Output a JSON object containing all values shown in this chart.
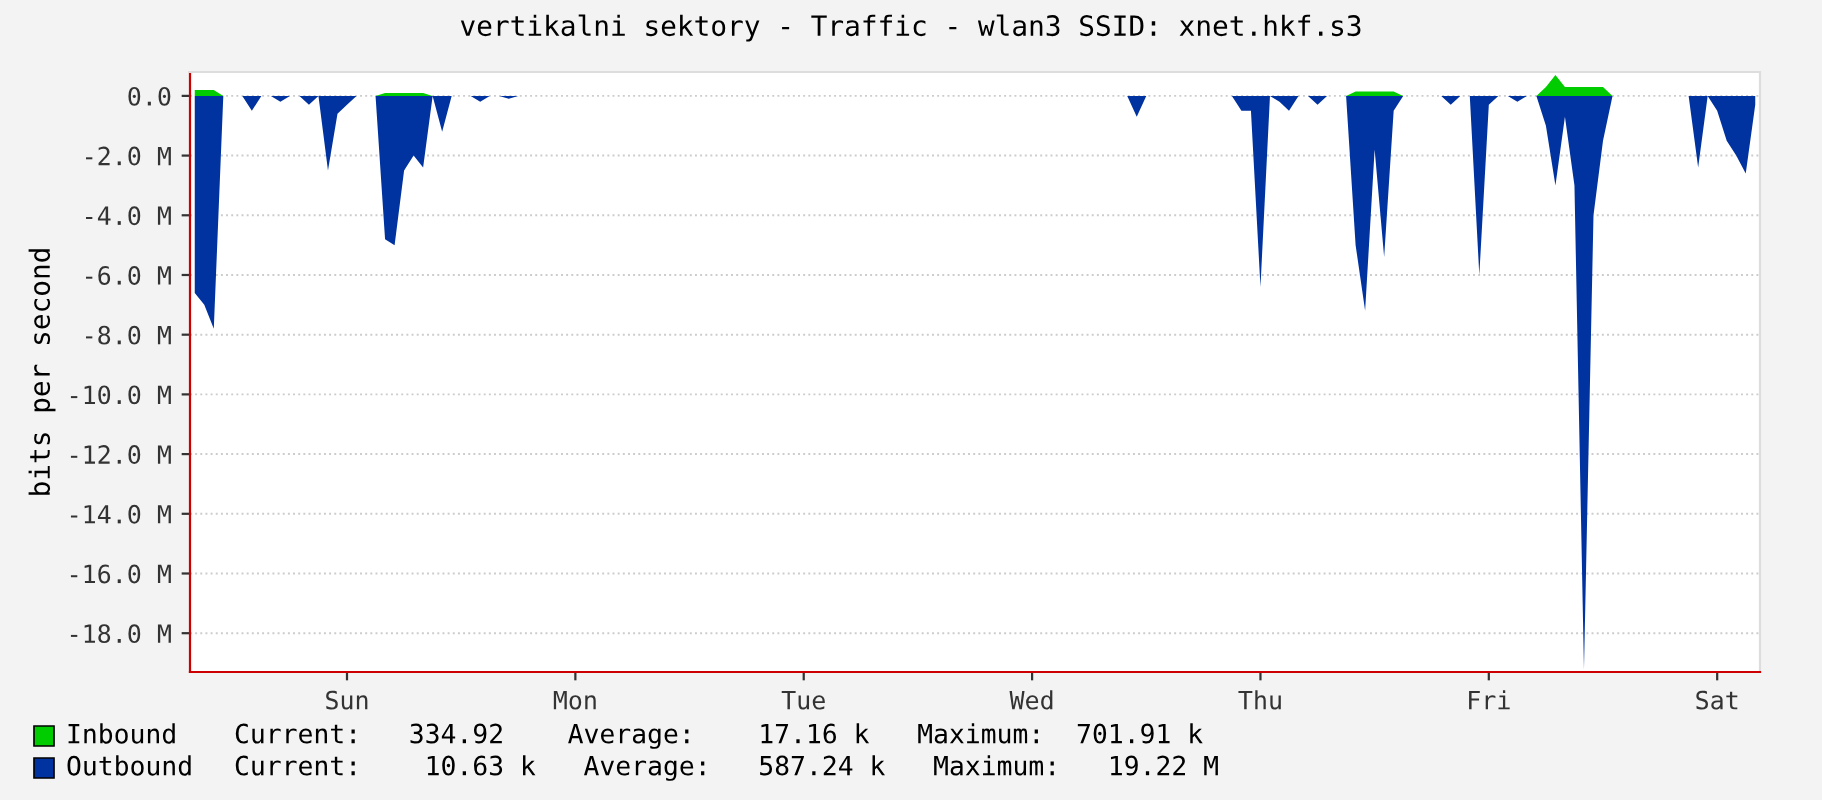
{
  "chart_data": {
    "type": "area",
    "title": "vertikalni sektory - Traffic - wlan3 SSID: xnet.hkf.s3",
    "ylabel": "bits per second",
    "categories": [
      null,
      null,
      null,
      null,
      null,
      null,
      null,
      null,
      null,
      null,
      null,
      null,
      null,
      null,
      null,
      null,
      "Sun",
      null,
      null,
      null,
      null,
      null,
      null,
      null,
      null,
      null,
      null,
      null,
      null,
      null,
      null,
      null,
      null,
      null,
      null,
      null,
      null,
      null,
      null,
      null,
      "Mon",
      null,
      null,
      null,
      null,
      null,
      null,
      null,
      null,
      null,
      null,
      null,
      null,
      null,
      null,
      null,
      null,
      null,
      null,
      null,
      null,
      null,
      null,
      null,
      "Tue",
      null,
      null,
      null,
      null,
      null,
      null,
      null,
      null,
      null,
      null,
      null,
      null,
      null,
      null,
      null,
      null,
      null,
      null,
      null,
      null,
      null,
      null,
      null,
      "Wed",
      null,
      null,
      null,
      null,
      null,
      null,
      null,
      null,
      null,
      null,
      null,
      null,
      null,
      null,
      null,
      null,
      null,
      null,
      null,
      null,
      null,
      null,
      null,
      "Thu",
      null,
      null,
      null,
      null,
      null,
      null,
      null,
      null,
      null,
      null,
      null,
      null,
      null,
      null,
      null,
      null,
      null,
      null,
      null,
      null,
      null,
      null,
      null,
      "Fri",
      null,
      null,
      null,
      null,
      null,
      null,
      null,
      null,
      null,
      null,
      null,
      null,
      null,
      null,
      null,
      null,
      null,
      null,
      null,
      null,
      null,
      null,
      null,
      "Sat",
      null,
      null,
      null,
      null
    ],
    "ylim": [
      -19.3,
      0.8
    ],
    "yticks": [
      {
        "value": 0,
        "label": "0.0"
      },
      {
        "value": -2,
        "label": "-2.0 M"
      },
      {
        "value": -4,
        "label": "-4.0 M"
      },
      {
        "value": -6,
        "label": "-6.0 M"
      },
      {
        "value": -8,
        "label": "-8.0 M"
      },
      {
        "value": -10,
        "label": "-10.0 M"
      },
      {
        "value": -12,
        "label": "-12.0 M"
      },
      {
        "value": -14,
        "label": "-14.0 M"
      },
      {
        "value": -16,
        "label": "-16.0 M"
      },
      {
        "value": -18,
        "label": "-18.0 M"
      }
    ],
    "grid": "y",
    "legend": "bottom",
    "annotations": [
      "Current:   334.92    Average:    17.16 k   Maximum:  701.91 k",
      "Current:    10.63 k   Average:   587.24 k   Maximum:   19.22 M"
    ],
    "series": [
      {
        "name": "Inbound",
        "color": "#00cc00",
        "values": [
          0.2,
          0.2,
          0.2,
          0,
          0,
          0,
          0,
          0,
          0,
          0,
          0,
          0,
          0,
          0,
          0,
          0,
          0,
          0,
          0,
          0,
          0.1,
          0.1,
          0.1,
          0.1,
          0.1,
          0,
          0,
          0,
          0,
          0,
          0,
          0,
          0,
          0,
          0,
          0,
          0,
          0,
          0,
          0,
          0,
          0,
          0,
          0,
          0,
          0,
          0,
          0,
          0,
          0,
          0,
          0,
          0,
          0,
          0,
          0,
          0,
          0,
          0,
          0,
          0,
          0,
          0,
          0,
          0,
          0,
          0,
          0,
          0,
          0,
          0,
          0,
          0,
          0,
          0,
          0,
          0,
          0,
          0,
          0,
          0,
          0,
          0,
          0,
          0,
          0,
          0,
          0,
          0,
          0,
          0,
          0,
          0,
          0,
          0,
          0,
          0,
          0,
          0,
          0,
          0,
          0,
          0,
          0,
          0,
          0,
          0,
          0,
          0,
          0,
          0,
          0,
          0,
          0,
          0,
          0,
          0,
          0,
          0,
          0,
          0,
          0,
          0.15,
          0.15,
          0.15,
          0.15,
          0.15,
          0,
          0,
          0,
          0,
          0,
          0,
          0,
          0,
          0,
          0,
          0,
          0,
          0,
          0,
          0,
          0.3,
          0.7,
          0.3,
          0.3,
          0.3,
          0.3,
          0.3,
          0,
          0,
          0,
          0,
          0,
          0,
          0,
          0,
          0,
          0,
          0,
          0,
          0,
          0,
          0,
          0
        ]
      },
      {
        "name": "Outbound",
        "color": "#0033a0",
        "values": [
          -6.6,
          -7.0,
          -7.8,
          0,
          0,
          0,
          -0.5,
          0,
          0,
          -0.2,
          0,
          0,
          -0.3,
          0,
          -2.5,
          -0.6,
          -0.3,
          0,
          0,
          0,
          -4.8,
          -5.0,
          -2.5,
          -2.0,
          -2.4,
          0,
          -1.2,
          0,
          0,
          0,
          -0.2,
          0,
          0,
          -0.1,
          0,
          0,
          0,
          0,
          0,
          0,
          0,
          0,
          0,
          0,
          0,
          0,
          0,
          0,
          0,
          0,
          0,
          0,
          0,
          0,
          0,
          0,
          0,
          0,
          0,
          0,
          0,
          0,
          0,
          0,
          0,
          0,
          0,
          0,
          0,
          0,
          0,
          0,
          0,
          0,
          0,
          0,
          0,
          0,
          0,
          0,
          0,
          0,
          0,
          0,
          0,
          0,
          0,
          0,
          0,
          0,
          0,
          0,
          0,
          0,
          0,
          0,
          0,
          0,
          0,
          -0.7,
          0,
          0,
          0,
          0,
          0,
          0,
          0,
          0,
          0,
          0,
          -0.5,
          -0.5,
          -6.4,
          0,
          -0.2,
          -0.5,
          0,
          0,
          -0.3,
          0,
          0,
          0,
          -5.0,
          -7.2,
          -1.8,
          -5.4,
          -0.5,
          0,
          0,
          0,
          0,
          0,
          -0.3,
          0,
          0,
          -6.0,
          -0.3,
          0,
          0,
          -0.2,
          0,
          0,
          -1.0,
          -3.0,
          -0.7,
          -3.0,
          -19.2,
          -4.0,
          -1.5,
          0,
          0,
          0,
          0,
          0,
          0,
          0,
          0,
          0,
          -2.4,
          0,
          -0.5,
          -1.5,
          -2.0,
          -2.6,
          -0.3
        ]
      }
    ]
  }
}
